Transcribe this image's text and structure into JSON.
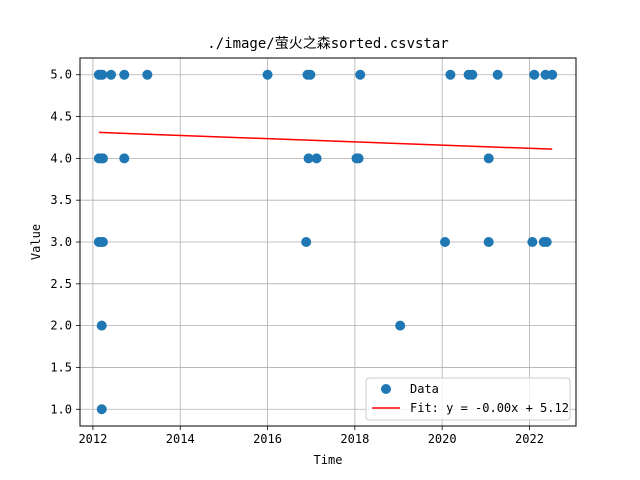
{
  "chart_data": {
    "type": "scatter",
    "title": "./image/萤火之森sorted.csvstar",
    "xlabel": "Time",
    "ylabel": "Value",
    "x_ticks": [
      "2012",
      "2014",
      "2016",
      "2018",
      "2020",
      "2022"
    ],
    "y_ticks": [
      "1.0",
      "1.5",
      "2.0",
      "2.5",
      "3.0",
      "3.5",
      "4.0",
      "4.5",
      "5.0"
    ],
    "xlim": [
      "2011-09-15",
      "2023-01-25"
    ],
    "ylim": [
      0.8,
      5.2
    ],
    "grid": true,
    "legend_position": "lower-right",
    "series": [
      {
        "name": "Data",
        "kind": "scatter",
        "color": "#1f77b4",
        "points": [
          {
            "x": "2012-02-20",
            "y": 5
          },
          {
            "x": "2012-03-05",
            "y": 5
          },
          {
            "x": "2012-03-20",
            "y": 5
          },
          {
            "x": "2012-06-01",
            "y": 5
          },
          {
            "x": "2012-09-20",
            "y": 5
          },
          {
            "x": "2013-04-01",
            "y": 5
          },
          {
            "x": "2016-01-01",
            "y": 5
          },
          {
            "x": "2016-12-01",
            "y": 5
          },
          {
            "x": "2016-12-25",
            "y": 5
          },
          {
            "x": "2018-02-15",
            "y": 5
          },
          {
            "x": "2020-03-10",
            "y": 5
          },
          {
            "x": "2020-08-10",
            "y": 5
          },
          {
            "x": "2020-09-10",
            "y": 5
          },
          {
            "x": "2021-04-10",
            "y": 5
          },
          {
            "x": "2022-02-10",
            "y": 5
          },
          {
            "x": "2022-05-15",
            "y": 5
          },
          {
            "x": "2022-07-10",
            "y": 5
          },
          {
            "x": "2012-02-20",
            "y": 4
          },
          {
            "x": "2012-03-10",
            "y": 4
          },
          {
            "x": "2012-03-25",
            "y": 4
          },
          {
            "x": "2012-09-20",
            "y": 4
          },
          {
            "x": "2016-12-10",
            "y": 4
          },
          {
            "x": "2017-02-15",
            "y": 4
          },
          {
            "x": "2018-01-15",
            "y": 4
          },
          {
            "x": "2018-02-01",
            "y": 4
          },
          {
            "x": "2021-01-25",
            "y": 4
          },
          {
            "x": "2012-02-20",
            "y": 3
          },
          {
            "x": "2012-03-10",
            "y": 3
          },
          {
            "x": "2012-03-25",
            "y": 3
          },
          {
            "x": "2016-11-20",
            "y": 3
          },
          {
            "x": "2020-01-25",
            "y": 3
          },
          {
            "x": "2021-01-25",
            "y": 3
          },
          {
            "x": "2022-01-25",
            "y": 3
          },
          {
            "x": "2022-05-01",
            "y": 3
          },
          {
            "x": "2022-05-25",
            "y": 3
          },
          {
            "x": "2012-03-15",
            "y": 2
          },
          {
            "x": "2019-01-15",
            "y": 2
          },
          {
            "x": "2012-03-15",
            "y": 1
          }
        ]
      },
      {
        "name": "Fit: y = -0.00x + 5.12",
        "kind": "line",
        "color": "#ff0000",
        "points": [
          {
            "x": "2012-02-20",
            "y": 4.31
          },
          {
            "x": "2022-07-10",
            "y": 4.11
          }
        ]
      }
    ]
  }
}
